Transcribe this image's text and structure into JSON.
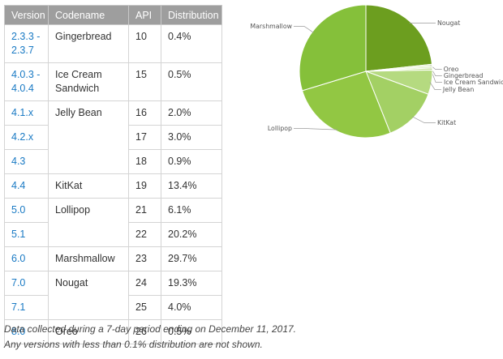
{
  "table": {
    "headers": [
      "Version",
      "Codename",
      "API",
      "Distribution"
    ],
    "rows": [
      {
        "version": "2.3.3 - 2.3.7",
        "codename": "Gingerbread",
        "api": "10",
        "dist": "0.4%"
      },
      {
        "version": "4.0.3 - 4.0.4",
        "codename": "Ice Cream Sandwich",
        "api": "15",
        "dist": "0.5%"
      },
      {
        "version": "4.1.x",
        "codename": "Jelly Bean",
        "api": "16",
        "dist": "2.0%"
      },
      {
        "version": "4.2.x",
        "codename": "",
        "api": "17",
        "dist": "3.0%"
      },
      {
        "version": "4.3",
        "codename": "",
        "api": "18",
        "dist": "0.9%"
      },
      {
        "version": "4.4",
        "codename": "KitKat",
        "api": "19",
        "dist": "13.4%"
      },
      {
        "version": "5.0",
        "codename": "Lollipop",
        "api": "21",
        "dist": "6.1%"
      },
      {
        "version": "5.1",
        "codename": "",
        "api": "22",
        "dist": "20.2%"
      },
      {
        "version": "6.0",
        "codename": "Marshmallow",
        "api": "23",
        "dist": "29.7%"
      },
      {
        "version": "7.0",
        "codename": "Nougat",
        "api": "24",
        "dist": "19.3%"
      },
      {
        "version": "7.1",
        "codename": "",
        "api": "25",
        "dist": "4.0%"
      },
      {
        "version": "8.0",
        "codename": "Oreo",
        "api": "26",
        "dist": "0.5%"
      }
    ]
  },
  "footnotes": [
    "Data collected during a 7-day period ending on December 11, 2017.",
    "Any versions with less than 0.1% distribution are not shown."
  ],
  "colors": {
    "header_bg": "#9e9e9e",
    "link": "#1a7ac4"
  },
  "chart_data": {
    "type": "pie",
    "title": "",
    "slices": [
      {
        "label": "Nougat",
        "value": 23.3,
        "color": "#6c9e1f"
      },
      {
        "label": "Oreo",
        "value": 0.5,
        "color": "#e2f0cc"
      },
      {
        "label": "Gingerbread",
        "value": 0.4,
        "color": "#d4eab2"
      },
      {
        "label": "Ice Cream Sandwich",
        "value": 0.5,
        "color": "#c5e29a"
      },
      {
        "label": "Jelly Bean",
        "value": 5.9,
        "color": "#b5da80"
      },
      {
        "label": "KitKat",
        "value": 13.4,
        "color": "#a3d064"
      },
      {
        "label": "Lollipop",
        "value": 26.3,
        "color": "#92c743"
      },
      {
        "label": "Marshmallow",
        "value": 29.7,
        "color": "#85c03a"
      }
    ]
  }
}
